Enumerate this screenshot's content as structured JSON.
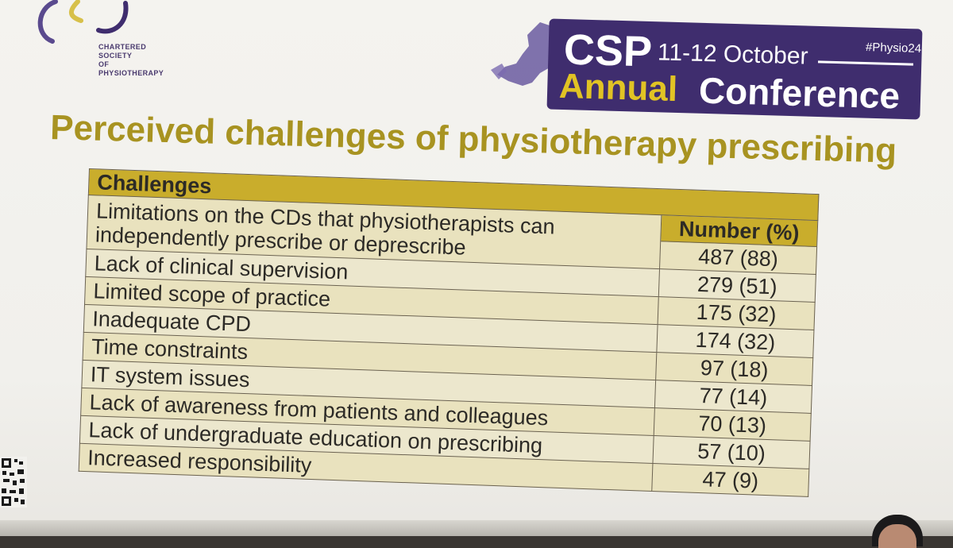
{
  "logo": {
    "lines": [
      "CHARTERED",
      "SOCIETY",
      "OF",
      "PHYSIOTHERAPY"
    ]
  },
  "banner": {
    "csp": "CSP",
    "dates": "11-12 October",
    "hashtag": "#Physio24",
    "annual": "Annual",
    "conference": "Conference"
  },
  "title": "Perceived challenges of physiotherapy prescribing",
  "table": {
    "header_challenges": "Challenges",
    "header_number": "Number (%)",
    "rows": [
      {
        "challenge": "Limitations on the CDs that physiotherapists can independently prescribe or deprescribe",
        "number": "487 (88)"
      },
      {
        "challenge": "Lack of clinical supervision",
        "number": "279 (51)"
      },
      {
        "challenge": "Limited scope of practice",
        "number": "175 (32)"
      },
      {
        "challenge": "Inadequate CPD",
        "number": "174 (32)"
      },
      {
        "challenge": "Time constraints",
        "number": "97 (18)"
      },
      {
        "challenge": "IT system issues",
        "number": "77 (14)"
      },
      {
        "challenge": "Lack of awareness from patients and colleagues",
        "number": "70 (13)"
      },
      {
        "challenge": "Lack of undergraduate education on prescribing",
        "number": "57 (10)"
      },
      {
        "challenge": "Increased responsibility",
        "number": "47 (9)"
      }
    ]
  },
  "colors": {
    "accent_gold": "#a89321",
    "table_header": "#c9ad2c",
    "banner_purple": "#3f2d6e"
  }
}
